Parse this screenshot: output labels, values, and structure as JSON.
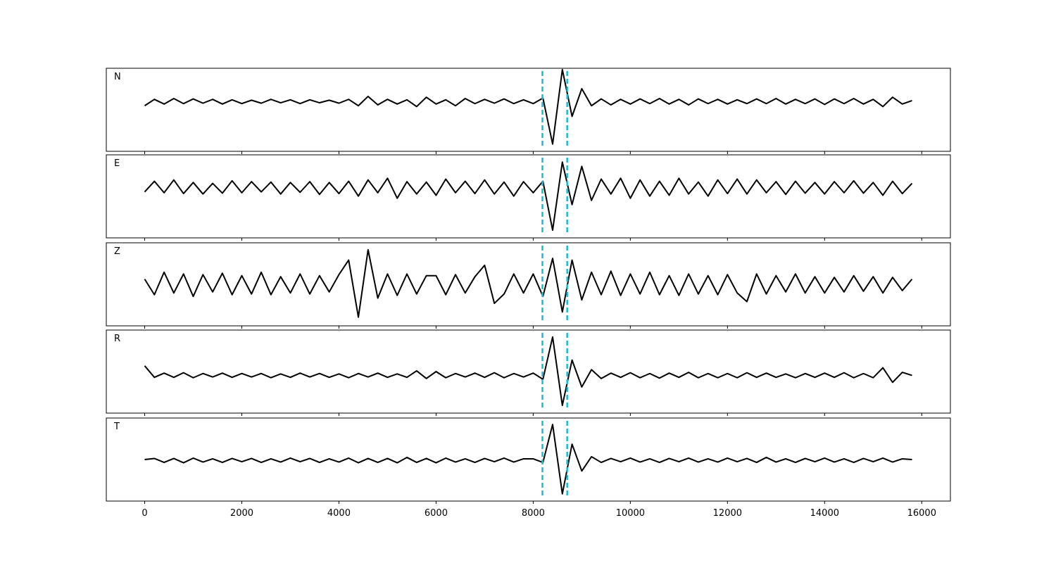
{
  "chart_data": {
    "type": "line",
    "x": [
      0,
      200,
      400,
      600,
      800,
      1000,
      1200,
      1400,
      1600,
      1800,
      2000,
      2200,
      2400,
      2600,
      2800,
      3000,
      3200,
      3400,
      3600,
      3800,
      4000,
      4200,
      4400,
      4600,
      4800,
      5000,
      5200,
      5400,
      5600,
      5800,
      6000,
      6200,
      6400,
      6600,
      6800,
      7000,
      7200,
      7400,
      7600,
      7800,
      8000,
      8200,
      8400,
      8600,
      8800,
      9000,
      9200,
      9400,
      9600,
      9800,
      10000,
      10200,
      10400,
      10600,
      10800,
      11000,
      11200,
      11400,
      11600,
      11800,
      12000,
      12200,
      12400,
      12600,
      12800,
      13000,
      13200,
      13400,
      13600,
      13800,
      14000,
      14200,
      14400,
      14600,
      14800,
      15000,
      15200,
      15400,
      15600,
      15800
    ],
    "xlim": [
      -790,
      16590
    ],
    "xticks": [
      0,
      2000,
      4000,
      6000,
      8000,
      10000,
      12000,
      14000,
      16000
    ],
    "vlines": [
      8190,
      8700
    ],
    "vline_color": "#17becf",
    "series": [
      {
        "name": "N",
        "color": "#000000",
        "ylim": [
          -1.17,
          0.78
        ],
        "values": [
          -0.1,
          0.05,
          -0.06,
          0.07,
          -0.05,
          0.06,
          -0.04,
          0.05,
          -0.06,
          0.04,
          -0.05,
          0.03,
          -0.04,
          0.05,
          -0.03,
          0.04,
          -0.05,
          0.04,
          -0.03,
          0.03,
          -0.04,
          0.05,
          -0.1,
          0.12,
          -0.08,
          0.05,
          -0.06,
          0.04,
          -0.12,
          0.1,
          -0.06,
          0.04,
          -0.1,
          0.07,
          -0.05,
          0.05,
          -0.04,
          0.06,
          -0.05,
          0.04,
          -0.05,
          0.08,
          -1.0,
          0.75,
          -0.35,
          0.3,
          -0.1,
          0.06,
          -0.08,
          0.05,
          -0.06,
          0.06,
          -0.05,
          0.07,
          -0.06,
          0.05,
          -0.08,
          0.06,
          -0.05,
          0.05,
          -0.06,
          0.04,
          -0.05,
          0.06,
          -0.05,
          0.07,
          -0.06,
          0.05,
          -0.05,
          0.06,
          -0.07,
          0.06,
          -0.05,
          0.07,
          -0.06,
          0.05,
          -0.12,
          0.1,
          -0.06,
          0.02
        ]
      },
      {
        "name": "E",
        "color": "#000000",
        "ylim": [
          -1.18,
          0.77
        ],
        "values": [
          -0.1,
          0.15,
          -0.12,
          0.18,
          -0.14,
          0.12,
          -0.15,
          0.1,
          -0.13,
          0.16,
          -0.12,
          0.14,
          -0.1,
          0.13,
          -0.15,
          0.12,
          -0.11,
          0.14,
          -0.16,
          0.12,
          -0.14,
          0.15,
          -0.2,
          0.18,
          -0.12,
          0.22,
          -0.25,
          0.14,
          -0.15,
          0.13,
          -0.18,
          0.2,
          -0.12,
          0.15,
          -0.14,
          0.18,
          -0.15,
          0.13,
          -0.2,
          0.14,
          -0.12,
          0.15,
          -1.0,
          0.6,
          -0.4,
          0.5,
          -0.3,
          0.2,
          -0.15,
          0.22,
          -0.25,
          0.18,
          -0.2,
          0.15,
          -0.18,
          0.22,
          -0.15,
          0.13,
          -0.2,
          0.18,
          -0.14,
          0.2,
          -0.15,
          0.18,
          -0.12,
          0.14,
          -0.16,
          0.15,
          -0.13,
          0.12,
          -0.15,
          0.14,
          -0.12,
          0.16,
          -0.13,
          0.12,
          -0.18,
          0.15,
          -0.14,
          0.1
        ]
      },
      {
        "name": "Z",
        "color": "#000000",
        "ylim": [
          -1.2,
          1.2
        ],
        "values": [
          0.15,
          -0.3,
          0.35,
          -0.25,
          0.3,
          -0.35,
          0.28,
          -0.22,
          0.32,
          -0.3,
          0.25,
          -0.28,
          0.35,
          -0.3,
          0.22,
          -0.25,
          0.3,
          -0.28,
          0.25,
          -0.22,
          0.28,
          0.7,
          -0.95,
          1.0,
          -0.4,
          0.3,
          -0.32,
          0.3,
          -0.28,
          0.25,
          0.25,
          -0.3,
          0.28,
          -0.25,
          0.22,
          0.55,
          -0.55,
          -0.28,
          0.3,
          -0.25,
          0.3,
          -0.35,
          0.75,
          -0.8,
          0.7,
          -0.45,
          0.35,
          -0.3,
          0.38,
          -0.32,
          0.3,
          -0.28,
          0.35,
          -0.3,
          0.25,
          -0.32,
          0.3,
          -0.28,
          0.25,
          -0.3,
          0.28,
          -0.25,
          -0.5,
          0.3,
          -0.28,
          0.25,
          -0.22,
          0.3,
          -0.25,
          0.22,
          -0.25,
          0.2,
          -0.22,
          0.25,
          -0.2,
          0.22,
          -0.25,
          0.2,
          -0.18,
          0.15
        ]
      },
      {
        "name": "R",
        "color": "#000000",
        "ylim": [
          -0.98,
          1.18
        ],
        "values": [
          0.25,
          -0.05,
          0.06,
          -0.05,
          0.07,
          -0.06,
          0.05,
          -0.04,
          0.06,
          -0.05,
          0.05,
          -0.04,
          0.05,
          -0.06,
          0.04,
          -0.05,
          0.06,
          -0.04,
          0.05,
          -0.05,
          0.04,
          -0.06,
          0.05,
          -0.04,
          0.06,
          -0.05,
          0.04,
          -0.05,
          0.12,
          -0.08,
          0.1,
          -0.06,
          0.05,
          -0.04,
          0.06,
          -0.05,
          0.07,
          -0.06,
          0.05,
          -0.04,
          0.06,
          -0.1,
          1.0,
          -0.78,
          0.4,
          -0.3,
          0.15,
          -0.08,
          0.06,
          -0.05,
          0.07,
          -0.06,
          0.05,
          -0.07,
          0.06,
          -0.05,
          0.08,
          -0.06,
          0.05,
          -0.06,
          0.05,
          -0.06,
          0.07,
          -0.05,
          0.06,
          -0.05,
          0.04,
          -0.06,
          0.05,
          -0.05,
          0.06,
          -0.05,
          0.07,
          -0.06,
          0.05,
          -0.06,
          0.2,
          -0.18,
          0.08,
          0.0
        ]
      },
      {
        "name": "T",
        "color": "#000000",
        "ylim": [
          -1.14,
          1.18
        ],
        "values": [
          0.02,
          0.05,
          -0.06,
          0.05,
          -0.07,
          0.06,
          -0.05,
          0.04,
          -0.06,
          0.05,
          -0.04,
          0.05,
          -0.06,
          0.04,
          -0.05,
          0.06,
          -0.04,
          0.05,
          -0.06,
          0.04,
          -0.05,
          0.06,
          -0.07,
          0.05,
          -0.06,
          0.05,
          -0.07,
          0.08,
          -0.06,
          0.05,
          -0.07,
          0.06,
          -0.05,
          0.04,
          -0.06,
          0.05,
          -0.04,
          0.06,
          -0.05,
          0.04,
          0.04,
          -0.06,
          1.0,
          -0.94,
          0.45,
          -0.3,
          0.1,
          -0.06,
          0.05,
          -0.04,
          0.06,
          -0.05,
          0.04,
          -0.06,
          0.05,
          -0.04,
          0.06,
          -0.05,
          0.04,
          -0.05,
          0.06,
          -0.04,
          0.05,
          -0.06,
          0.08,
          -0.05,
          0.04,
          -0.06,
          0.05,
          -0.04,
          0.06,
          -0.05,
          0.04,
          -0.06,
          0.05,
          -0.04,
          0.06,
          -0.05,
          0.04,
          0.02
        ]
      }
    ]
  }
}
